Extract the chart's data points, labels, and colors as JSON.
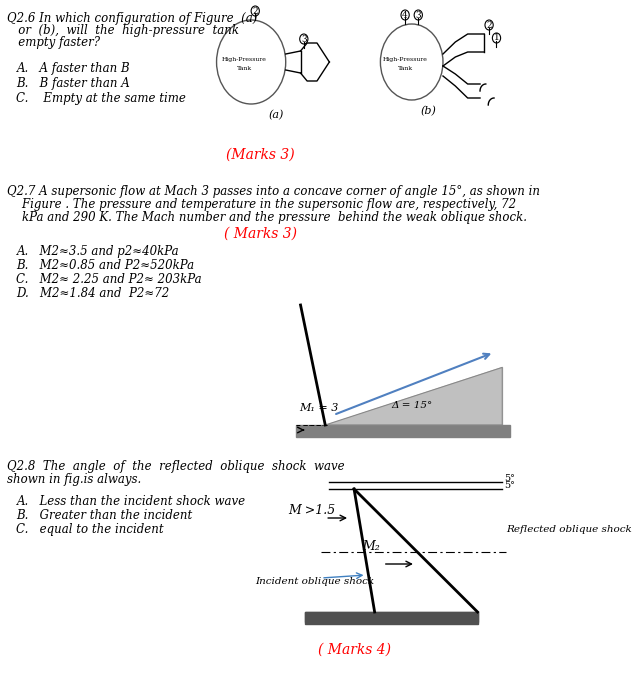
{
  "background_color": "#ffffff",
  "q26": {
    "question_line1": "Q2.6 In which configuration of Figure  (a)",
    "question_line2": "   or  (b),  will  the  high-pressure  tank",
    "question_line3": "   empty faster?",
    "options": [
      "A.   A faster than B",
      "B.   B faster than A",
      "C.    Empty at the same time"
    ],
    "marks": "(Marks 3)"
  },
  "q27": {
    "question_line1": "Q2.7 A supersonic flow at Mach 3 passes into a concave corner of angle 15°, as shown in",
    "question_line2": "    Figure . The pressure and temperature in the supersonic flow are, respectively, 72",
    "question_line3": "    kPa and 290 K. The Mach number and the pressure  behind the weak oblique shock.",
    "marks": "( Marks 3)",
    "options": [
      "A.   M2≈3.5 and p2≈40kPa",
      "B.   M2≈0.85 and P2≈520kPa",
      "C.   M2≈ 2.25 and P2≈ 203kPa",
      "D.   M2≈1.84 and  P2≈72"
    ]
  },
  "q28": {
    "question_line1": "Q2.8  The  angle  of  the  reflected  oblique  shock  wave",
    "question_line2": "shown in fig.is always.",
    "options": [
      "A.   Less than the incident shock wave",
      "B.   Greater than the incident",
      "C.   equal to the incident"
    ],
    "marks": "( Marks 4)"
  }
}
